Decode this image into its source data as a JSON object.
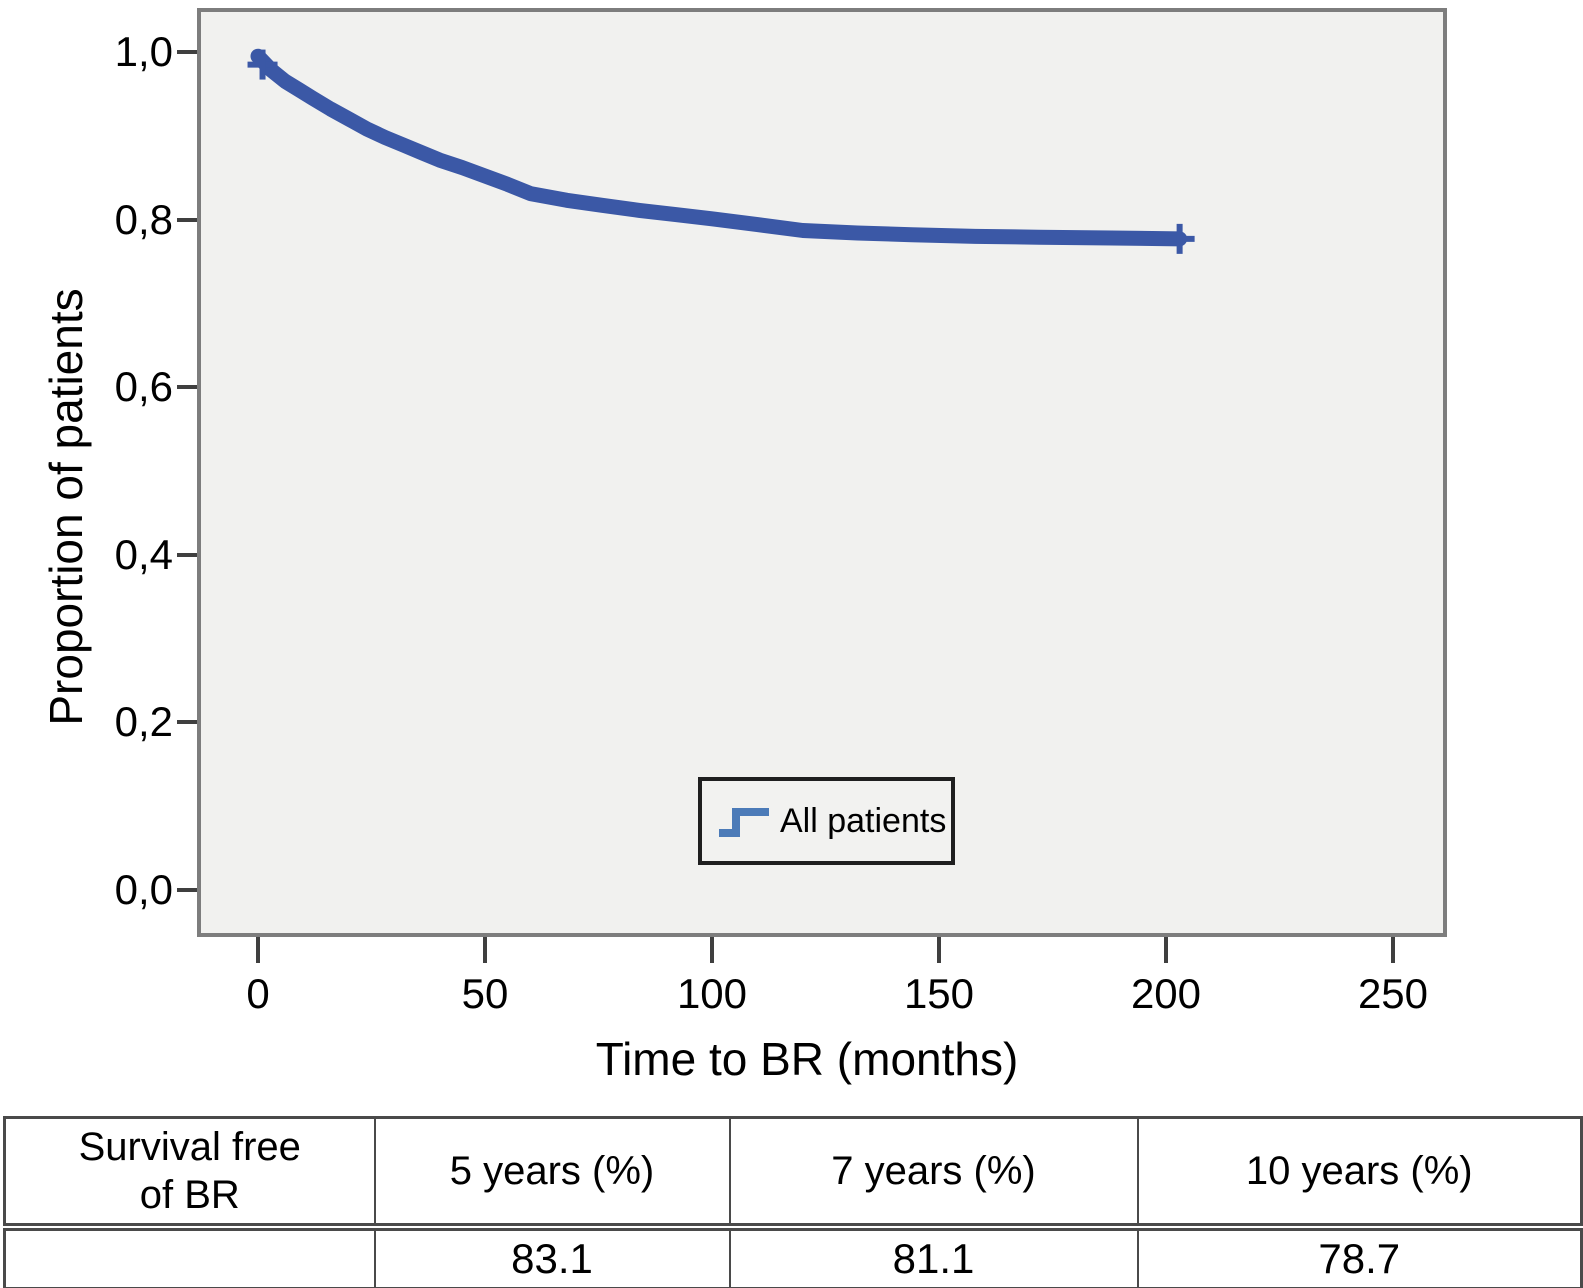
{
  "figure": {
    "y_axis": {
      "title": "Proportion of patients",
      "tick_labels": [
        "1,0",
        "0,8",
        "0,6",
        "0,4",
        "0,2",
        "0,0"
      ],
      "tick_values": [
        1.0,
        0.8,
        0.6,
        0.4,
        0.2,
        0.0
      ]
    },
    "x_axis": {
      "title": "Time to BR (months)",
      "tick_labels": [
        "0",
        "50",
        "100",
        "150",
        "200",
        "250"
      ],
      "tick_values": [
        0,
        50,
        100,
        150,
        200,
        250
      ]
    },
    "legend": {
      "label": "All patients",
      "icon": "step-line-icon"
    }
  },
  "chart_data": {
    "type": "line",
    "subtype": "kaplan-meier-survival",
    "title": "",
    "xlabel": "Time to BR (months)",
    "ylabel": "Proportion of patients",
    "xlim": [
      0,
      262
    ],
    "ylim": [
      0,
      1.05
    ],
    "grid": false,
    "legend_position": "inside-bottom-center",
    "series": [
      {
        "name": "All patients",
        "color": "#3b58a6",
        "x": [
          0,
          3,
          6,
          9,
          12,
          16,
          20,
          24,
          28,
          32,
          36,
          40,
          45,
          50,
          55,
          60,
          68,
          76,
          84,
          92,
          100,
          110,
          120,
          132,
          144,
          158,
          172,
          188,
          203
        ],
        "y": [
          0.995,
          0.978,
          0.965,
          0.955,
          0.945,
          0.932,
          0.92,
          0.908,
          0.898,
          0.889,
          0.88,
          0.871,
          0.862,
          0.852,
          0.842,
          0.831,
          0.823,
          0.817,
          0.811,
          0.806,
          0.801,
          0.794,
          0.787,
          0.784,
          0.782,
          0.78,
          0.779,
          0.778,
          0.777
        ],
        "censor_marks": [
          {
            "x": 1,
            "y": 0.985
          },
          {
            "x": 203,
            "y": 0.777
          }
        ]
      }
    ],
    "key_values": {
      "survival_free_of_BR_5yr_pct": 83.1,
      "survival_free_of_BR_7yr_pct": 81.1,
      "survival_free_of_BR_10yr_pct": 78.7
    }
  },
  "table": {
    "header": [
      "Survival free\nof BR",
      "5 years (%)",
      "7 years (%)",
      "10 years (%)"
    ],
    "rows": [
      [
        "",
        "83.1",
        "81.1",
        "78.7"
      ]
    ]
  },
  "colors": {
    "curve": "#3b58a6",
    "legend_line": "#4c7bb8",
    "plot_background": "#f1f1ef",
    "frame": "#7d7d7d",
    "table_border": "#4a4a4a",
    "text": "#000000"
  }
}
